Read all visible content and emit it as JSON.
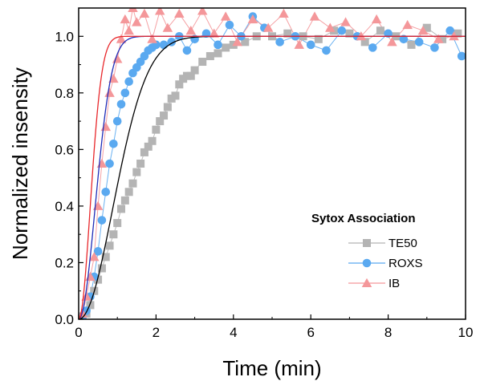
{
  "chart_data": {
    "type": "scatter",
    "xlabel": "Time (min)",
    "ylabel": "Normalized insensity",
    "xlim": [
      0,
      10
    ],
    "ylim": [
      0,
      1.1
    ],
    "x_ticks": [
      0,
      2,
      4,
      6,
      8,
      10
    ],
    "y_ticks": [
      0.0,
      0.2,
      0.4,
      0.6,
      0.8,
      1.0
    ],
    "x_tick_labels": [
      "0",
      "2",
      "4",
      "6",
      "8",
      "10"
    ],
    "y_tick_labels": [
      "0.0",
      "0.2",
      "0.4",
      "0.6",
      "0.8",
      "1.0"
    ],
    "grid": false,
    "legend": {
      "title": "Sytox Association",
      "placement": "lower-right"
    },
    "series": [
      {
        "name": "TE50",
        "marker": "square",
        "color": "#b4b4b4",
        "fit_color": "#000000",
        "fit_tau": 1.25,
        "fit_power": 2,
        "x": [
          0.1,
          0.2,
          0.3,
          0.4,
          0.5,
          0.6,
          0.7,
          0.8,
          0.9,
          1.0,
          1.1,
          1.2,
          1.3,
          1.4,
          1.5,
          1.6,
          1.7,
          1.8,
          1.9,
          2.0,
          2.1,
          2.2,
          2.3,
          2.4,
          2.5,
          2.6,
          2.7,
          2.8,
          2.9,
          3.0,
          3.2,
          3.4,
          3.6,
          3.8,
          4.0,
          4.3,
          4.6,
          5.0,
          5.4,
          5.8,
          6.2,
          6.6,
          7.0,
          7.4,
          7.8,
          8.2,
          8.6,
          9.0,
          9.4,
          9.8
        ],
        "y": [
          0.01,
          0.02,
          0.05,
          0.1,
          0.14,
          0.18,
          0.22,
          0.26,
          0.3,
          0.34,
          0.39,
          0.42,
          0.45,
          0.48,
          0.52,
          0.55,
          0.59,
          0.61,
          0.63,
          0.67,
          0.7,
          0.72,
          0.75,
          0.78,
          0.79,
          0.83,
          0.85,
          0.86,
          0.86,
          0.88,
          0.91,
          0.93,
          0.94,
          0.96,
          0.97,
          0.98,
          1.0,
          1.0,
          1.01,
          1.0,
          0.99,
          1.02,
          1.01,
          0.98,
          1.02,
          1.0,
          0.97,
          1.03,
          0.99,
          1.01
        ]
      },
      {
        "name": "ROXS",
        "marker": "circle",
        "color": "#5aa9f0",
        "fit_color": "#1f2db8",
        "fit_tau": 0.6,
        "fit_power": 2,
        "x": [
          0.1,
          0.2,
          0.3,
          0.4,
          0.5,
          0.6,
          0.7,
          0.8,
          0.9,
          1.0,
          1.1,
          1.2,
          1.3,
          1.4,
          1.5,
          1.6,
          1.7,
          1.8,
          1.9,
          2.0,
          2.2,
          2.4,
          2.6,
          2.8,
          3.0,
          3.3,
          3.6,
          3.9,
          4.2,
          4.5,
          4.8,
          5.2,
          5.6,
          6.0,
          6.4,
          6.8,
          7.2,
          7.6,
          8.0,
          8.4,
          8.8,
          9.2,
          9.6,
          9.9
        ],
        "y": [
          0.01,
          0.03,
          0.08,
          0.15,
          0.24,
          0.35,
          0.45,
          0.55,
          0.62,
          0.7,
          0.76,
          0.8,
          0.84,
          0.87,
          0.89,
          0.91,
          0.93,
          0.95,
          0.96,
          0.97,
          0.97,
          0.98,
          1.0,
          0.95,
          0.99,
          1.01,
          0.97,
          1.04,
          1.0,
          1.07,
          1.03,
          0.98,
          1.0,
          0.97,
          0.95,
          1.02,
          1.0,
          0.96,
          1.01,
          0.99,
          0.98,
          0.96,
          1.02,
          0.93
        ]
      },
      {
        "name": "IB",
        "marker": "triangle",
        "color": "#f4979a",
        "fit_color": "#e8282c",
        "fit_tau": 0.42,
        "fit_power": 2,
        "x": [
          0.1,
          0.2,
          0.3,
          0.4,
          0.5,
          0.6,
          0.7,
          0.8,
          0.9,
          1.0,
          1.1,
          1.2,
          1.3,
          1.4,
          1.5,
          1.7,
          1.9,
          2.1,
          2.3,
          2.6,
          2.9,
          3.2,
          3.5,
          3.8,
          4.1,
          4.5,
          4.9,
          5.3,
          5.7,
          6.1,
          6.5,
          6.9,
          7.3,
          7.7,
          8.1,
          8.5,
          8.9,
          9.3,
          9.7
        ],
        "y": [
          0.02,
          0.08,
          0.15,
          0.22,
          0.4,
          0.55,
          0.68,
          0.8,
          0.85,
          0.92,
          0.99,
          1.06,
          1.02,
          1.1,
          1.05,
          1.08,
          0.99,
          1.09,
          1.03,
          1.08,
          1.02,
          1.09,
          1.01,
          1.07,
          0.98,
          1.06,
          1.03,
          1.08,
          0.97,
          1.07,
          1.03,
          1.05,
          1.0,
          1.06,
          0.98,
          1.04,
          1.02,
          0.99,
          1.0
        ]
      }
    ]
  }
}
